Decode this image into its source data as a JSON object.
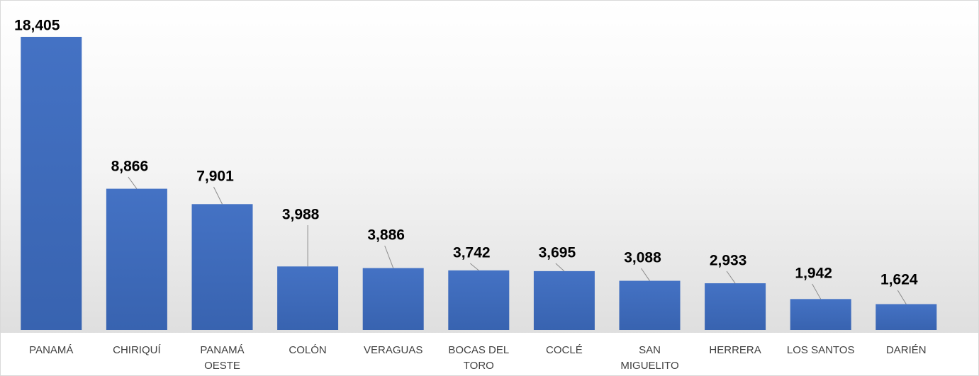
{
  "chart_data": {
    "type": "bar",
    "categories": [
      "PANAMÁ",
      "CHIRIQUÍ",
      "PANAMÁ OESTE",
      "COLÓN",
      "VERAGUAS",
      "BOCAS DEL TORO",
      "COCLÉ",
      "SAN MIGUELITO",
      "HERRERA",
      "LOS SANTOS",
      "DARIÉN"
    ],
    "values": [
      18405,
      8866,
      7901,
      3988,
      3886,
      3742,
      3695,
      3088,
      2933,
      1942,
      1624
    ],
    "value_labels": [
      "18,405",
      "8,866",
      "7,901",
      "3,988",
      "3,886",
      "3,742",
      "3,695",
      "3,088",
      "2,933",
      "1,942",
      "1,624"
    ],
    "color": "#4472c4"
  }
}
